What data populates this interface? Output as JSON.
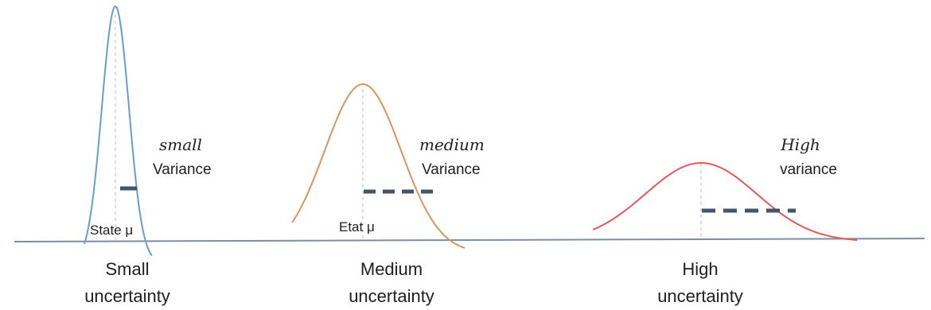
{
  "colors": {
    "small_curve": "#6b9ccf",
    "medium_curve": "#d9955b",
    "high_curve": "#e5595b",
    "baseline": "#7b8fa3",
    "dash": "#44546a",
    "guide": "#c8c8c8"
  },
  "panels": [
    {
      "id": "small",
      "variance_word": "small",
      "variance_label": "Variance",
      "mean_label": "State μ",
      "caption_line1": "Small",
      "caption_line2": "uncertainty"
    },
    {
      "id": "medium",
      "variance_word": "medium",
      "variance_label": "Variance",
      "mean_label": "Etat μ",
      "caption_line1": "Medium",
      "caption_line2": "uncertainty"
    },
    {
      "id": "high",
      "variance_word": "High",
      "variance_label": "variance",
      "caption_line1": "High",
      "caption_line2": "uncertainty"
    }
  ]
}
